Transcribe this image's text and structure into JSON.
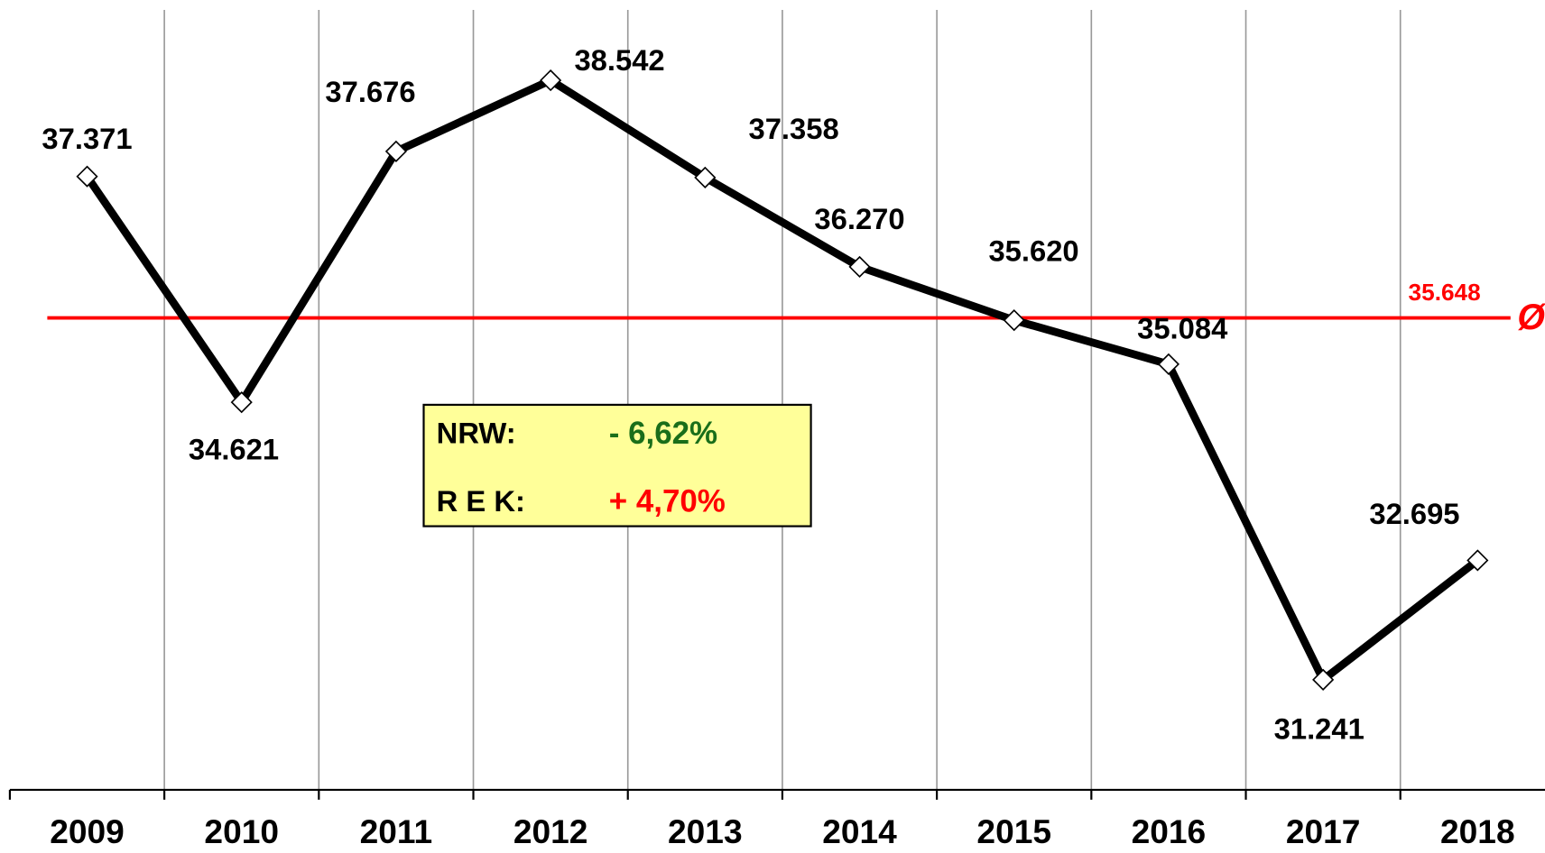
{
  "chart_data": {
    "type": "line",
    "categories": [
      "2009",
      "2010",
      "2011",
      "2012",
      "2013",
      "2014",
      "2015",
      "2016",
      "2017",
      "2018"
    ],
    "series": [
      {
        "name": null,
        "color": "#000000",
        "values": [
          37371,
          34621,
          37676,
          38542,
          37358,
          36270,
          35620,
          35084,
          31241,
          32695
        ],
        "value_labels": [
          "37.371",
          "34.621",
          "37.676",
          "38.542",
          "37.358",
          "36.270",
          "35.620",
          "35.084",
          "31.241",
          "32.695"
        ]
      }
    ],
    "ylim": [
      29900,
      39400
    ],
    "grid": true,
    "average": {
      "value": 35648,
      "label": "35.648",
      "symbol": "Ø",
      "color": "#ff0000"
    },
    "annotation": {
      "rows": [
        {
          "label": "NRW:",
          "value": "- 6,62%",
          "color": "#1a6e1a"
        },
        {
          "label": "R E K:",
          "value": "+ 4,70%",
          "color": "#ff0000"
        }
      ],
      "background": "#ffff99"
    }
  }
}
